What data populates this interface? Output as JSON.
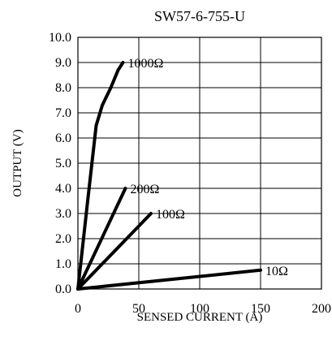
{
  "chart_data": {
    "type": "line",
    "title": "SW57-6-755-U",
    "xlabel": "SENSED CURRENT (A)",
    "ylabel": "OUTPUT (V)",
    "xlim": [
      0,
      200
    ],
    "ylim": [
      0,
      10
    ],
    "x_ticks": [
      "0",
      "50",
      "100",
      "150",
      "200"
    ],
    "y_ticks": [
      "0.0",
      "1.0",
      "2.0",
      "3.0",
      "4.0",
      "5.0",
      "6.0",
      "7.0",
      "8.0",
      "9.0",
      "10.0"
    ],
    "grid": true,
    "series": [
      {
        "name": "1000Ω",
        "points": [
          [
            0,
            0
          ],
          [
            8,
            3.5
          ],
          [
            15,
            6.5
          ],
          [
            20,
            7.3
          ],
          [
            27,
            8.0
          ],
          [
            33,
            8.7
          ],
          [
            37,
            9.0
          ]
        ]
      },
      {
        "name": "200Ω",
        "points": [
          [
            0,
            0
          ],
          [
            39,
            4.0
          ]
        ]
      },
      {
        "name": "100Ω",
        "points": [
          [
            0,
            0
          ],
          [
            60,
            3.0
          ]
        ]
      },
      {
        "name": "10Ω",
        "points": [
          [
            0,
            0
          ],
          [
            150,
            0.75
          ]
        ]
      }
    ]
  }
}
